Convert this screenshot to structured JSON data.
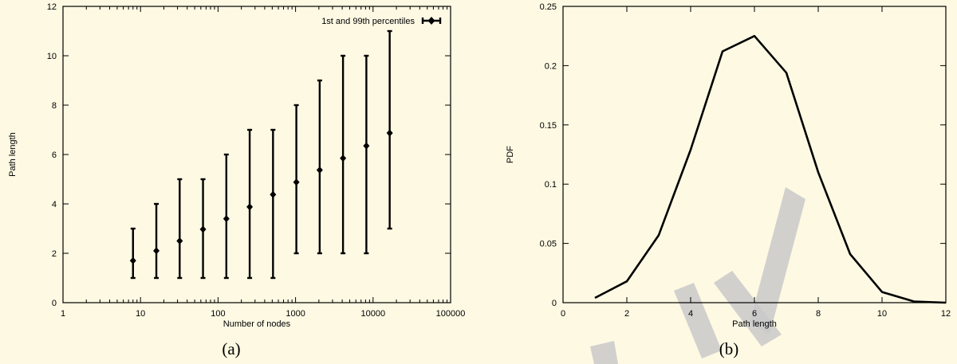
{
  "chart_data": [
    {
      "id": "a",
      "type": "scatter",
      "caption": "(a)",
      "xlabel": "Number of nodes",
      "ylabel": "Path length",
      "xscale": "log",
      "xlim": [
        1,
        100000
      ],
      "ylim": [
        0,
        12
      ],
      "xticks": [
        1,
        10,
        100,
        1000,
        10000,
        100000
      ],
      "xtick_labels": [
        "1",
        "10",
        "100",
        "1000",
        "10000",
        "100000"
      ],
      "yticks": [
        0,
        2,
        4,
        6,
        8,
        10,
        12
      ],
      "ytick_labels": [
        "0",
        "2",
        "4",
        "6",
        "8",
        "10",
        "12"
      ],
      "legend": {
        "position": "top-right",
        "entries": [
          "1st and 99th percentiles"
        ]
      },
      "series": [
        {
          "name": "1st and 99th percentiles",
          "points": [
            {
              "x": 8,
              "y": 1.7,
              "low": 1,
              "high": 3
            },
            {
              "x": 16,
              "y": 2.1,
              "low": 1,
              "high": 4
            },
            {
              "x": 32,
              "y": 2.5,
              "low": 1,
              "high": 5
            },
            {
              "x": 64,
              "y": 2.97,
              "low": 1,
              "high": 5
            },
            {
              "x": 128,
              "y": 3.4,
              "low": 1,
              "high": 6
            },
            {
              "x": 256,
              "y": 3.88,
              "low": 1,
              "high": 7
            },
            {
              "x": 512,
              "y": 4.38,
              "low": 1,
              "high": 7
            },
            {
              "x": 1024,
              "y": 4.88,
              "low": 2,
              "high": 8
            },
            {
              "x": 2048,
              "y": 5.37,
              "low": 2,
              "high": 9
            },
            {
              "x": 4096,
              "y": 5.85,
              "low": 2,
              "high": 10
            },
            {
              "x": 8192,
              "y": 6.35,
              "low": 2,
              "high": 10
            },
            {
              "x": 16384,
              "y": 6.87,
              "low": 3,
              "high": 11
            }
          ]
        }
      ]
    },
    {
      "id": "b",
      "type": "line",
      "caption": "(b)",
      "xlabel": "Path length",
      "ylabel": "PDF",
      "xlim": [
        0,
        12
      ],
      "ylim": [
        0,
        0.25
      ],
      "xticks": [
        0,
        2,
        4,
        6,
        8,
        10,
        12
      ],
      "xtick_labels": [
        "0",
        "2",
        "4",
        "6",
        "8",
        "10",
        "12"
      ],
      "yticks": [
        0,
        0.05,
        0.1,
        0.15,
        0.2,
        0.25
      ],
      "ytick_labels": [
        "0",
        "0.05",
        "0.1",
        "0.15",
        "0.2",
        "0.25"
      ],
      "series": [
        {
          "x": [
            1,
            2,
            3,
            4,
            5,
            6,
            7,
            8,
            9,
            10,
            11,
            12
          ],
          "values": [
            0.004,
            0.018,
            0.057,
            0.129,
            0.212,
            0.225,
            0.194,
            0.11,
            0.041,
            0.009,
            0.001,
            0.0
          ]
        }
      ]
    }
  ],
  "watermark": {
    "present": true,
    "color": "#c9c9c9"
  }
}
